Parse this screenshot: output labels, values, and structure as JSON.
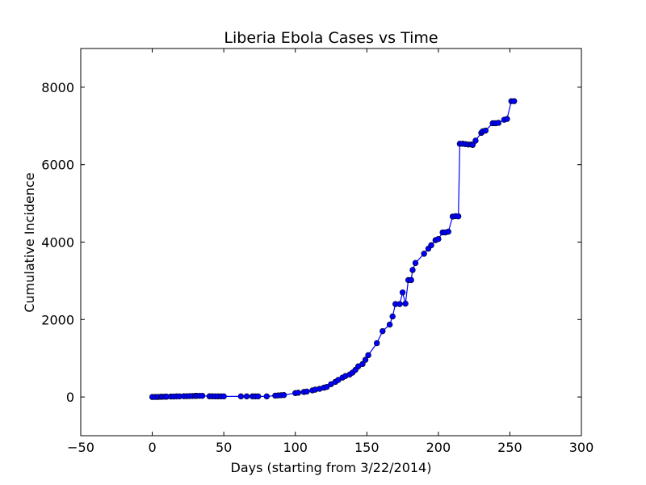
{
  "chart_data": {
    "type": "line",
    "title": "Liberia Ebola Cases vs Time",
    "xlabel": "Days (starting from 3/22/2014)",
    "ylabel": "Cumulative Incidence",
    "xlim": [
      -50,
      300
    ],
    "ylim": [
      -1000,
      9000
    ],
    "xticks": [
      -50,
      0,
      50,
      100,
      150,
      200,
      250,
      300
    ],
    "yticks": [
      0,
      2000,
      4000,
      6000,
      8000
    ],
    "xtick_labels": [
      "−50",
      "0",
      "50",
      "100",
      "150",
      "200",
      "250",
      "300"
    ],
    "ytick_labels": [
      "0",
      "2000",
      "4000",
      "6000",
      "8000"
    ],
    "grid": false,
    "marker": "circle",
    "series_color": "#0000ff",
    "marker_edge_color": "#000000",
    "series": [
      {
        "x": [
          0,
          2,
          4,
          6,
          7,
          9,
          10,
          13,
          15,
          17,
          19,
          22,
          24,
          26,
          28,
          30,
          31,
          33,
          35,
          40,
          42,
          44,
          46,
          48,
          50,
          62,
          66,
          70,
          72,
          74,
          80,
          86,
          88,
          90,
          92,
          100,
          102,
          106,
          108,
          112,
          114,
          117,
          120,
          122,
          125,
          128,
          130,
          133,
          135,
          138,
          140,
          142,
          144,
          147,
          149,
          151,
          157,
          161,
          166,
          168,
          170,
          173,
          175,
          177,
          179,
          181,
          182,
          184,
          190,
          193,
          195,
          198,
          200,
          203,
          205,
          207,
          210,
          212,
          214,
          215,
          217,
          219,
          221,
          223,
          224,
          226,
          230,
          231,
          233,
          238,
          240,
          242,
          246,
          248,
          251,
          253
        ],
        "y": [
          0,
          0,
          0,
          5,
          5,
          8,
          8,
          12,
          12,
          15,
          15,
          20,
          20,
          22,
          25,
          28,
          28,
          30,
          30,
          18,
          18,
          16,
          16,
          15,
          15,
          15,
          15,
          15,
          15,
          15,
          15,
          35,
          40,
          45,
          50,
          100,
          110,
          130,
          140,
          170,
          190,
          210,
          240,
          260,
          330,
          390,
          440,
          500,
          540,
          580,
          630,
          700,
          790,
          850,
          960,
          1080,
          1390,
          1700,
          1870,
          2080,
          2400,
          2400,
          2700,
          2410,
          3020,
          3020,
          3280,
          3460,
          3700,
          3830,
          3920,
          4050,
          4080,
          4250,
          4250,
          4270,
          4660,
          4670,
          4665,
          6540,
          6540,
          6530,
          6520,
          6520,
          6510,
          6620,
          6820,
          6860,
          6880,
          7070,
          7070,
          7080,
          7160,
          7180,
          7640,
          7640
        ]
      }
    ]
  }
}
